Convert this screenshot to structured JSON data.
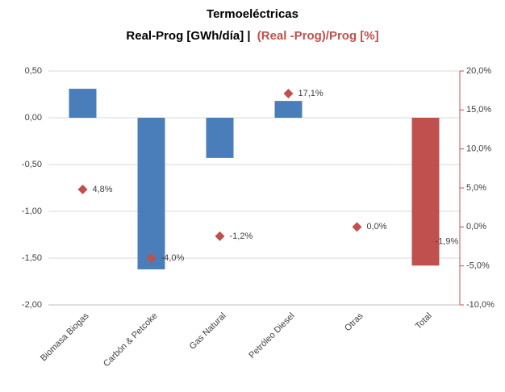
{
  "chart_data": {
    "type": "bar",
    "title": "Termoeléctricas",
    "subtitle": [
      "Real-Prog [GWh/día] |",
      "(Real -Prog)/Prog [%]"
    ],
    "subtitle_colors": [
      "#000000",
      "#c0504d"
    ],
    "categories": [
      "Biomasa Biogas",
      "Carbón & Petcoke",
      "Gas Natural",
      "Petróleo Diesel",
      "Otras",
      "Total"
    ],
    "series": [
      {
        "type": "bar",
        "values": [
          0.31,
          -1.62,
          -0.43,
          0.18,
          0,
          -1.58
        ],
        "colors": [
          "#4a7ebb",
          "#4a7ebb",
          "#4a7ebb",
          "#4a7ebb",
          "#4a7ebb",
          "#c0504d"
        ]
      },
      {
        "type": "scatter",
        "axis": "y2",
        "marker": "diamond",
        "color": "#c0504d",
        "values": [
          4.8,
          -4.0,
          -1.2,
          17.1,
          0.0,
          -1.9
        ],
        "value_labels": [
          "4,8%",
          "-4,0%",
          "-1,2%",
          "17,1%",
          "0,0%",
          "-1,9%"
        ]
      }
    ],
    "ylim": [
      -2,
      0.5
    ],
    "yticks": [
      {
        "value": 0.5,
        "label": "0,50"
      },
      {
        "value": 0,
        "label": "0,00"
      },
      {
        "value": -0.5,
        "label": "-0,50"
      },
      {
        "value": -1,
        "label": "-1,00"
      },
      {
        "value": -1.5,
        "label": "-1,50"
      },
      {
        "value": -2,
        "label": "-2,00"
      }
    ],
    "y2lim": [
      -10,
      20
    ],
    "y2ticks": [
      {
        "value": 20,
        "label": "20,0%"
      },
      {
        "value": 15,
        "label": "15,0%"
      },
      {
        "value": 10,
        "label": "10,0%"
      },
      {
        "value": 5,
        "label": "5,0%"
      },
      {
        "value": 0,
        "label": "0,0%"
      },
      {
        "value": -5,
        "label": "-5,0%"
      },
      {
        "value": -10,
        "label": "-10,0%"
      }
    ],
    "y2color": "#c0504d",
    "grid": true
  }
}
